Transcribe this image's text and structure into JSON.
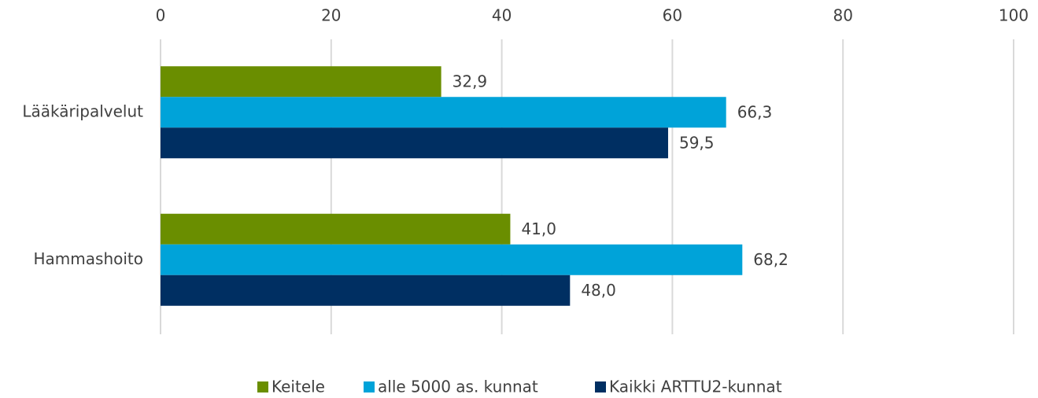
{
  "chart_data": {
    "type": "bar",
    "orientation": "horizontal",
    "categories": [
      "Lääkäripalvelut",
      "Hammashoito"
    ],
    "series": [
      {
        "name": "Keitele",
        "color": "#6a8e00",
        "values": [
          32.9,
          41.0
        ],
        "value_labels": [
          "32,9",
          "41,0"
        ]
      },
      {
        "name": "alle 5000 as. kunnat",
        "color": "#00a3d9",
        "values": [
          66.3,
          68.2
        ],
        "value_labels": [
          "66,3",
          "68,2"
        ]
      },
      {
        "name": "Kaikki ARTTU2-kunnat",
        "color": "#002f62",
        "values": [
          59.5,
          48.0
        ],
        "value_labels": [
          "59,5",
          "48,0"
        ]
      }
    ],
    "xlim": [
      0,
      100
    ],
    "xticks": [
      0,
      20,
      40,
      60,
      80,
      100
    ],
    "grid": true,
    "legend": "bottom"
  }
}
